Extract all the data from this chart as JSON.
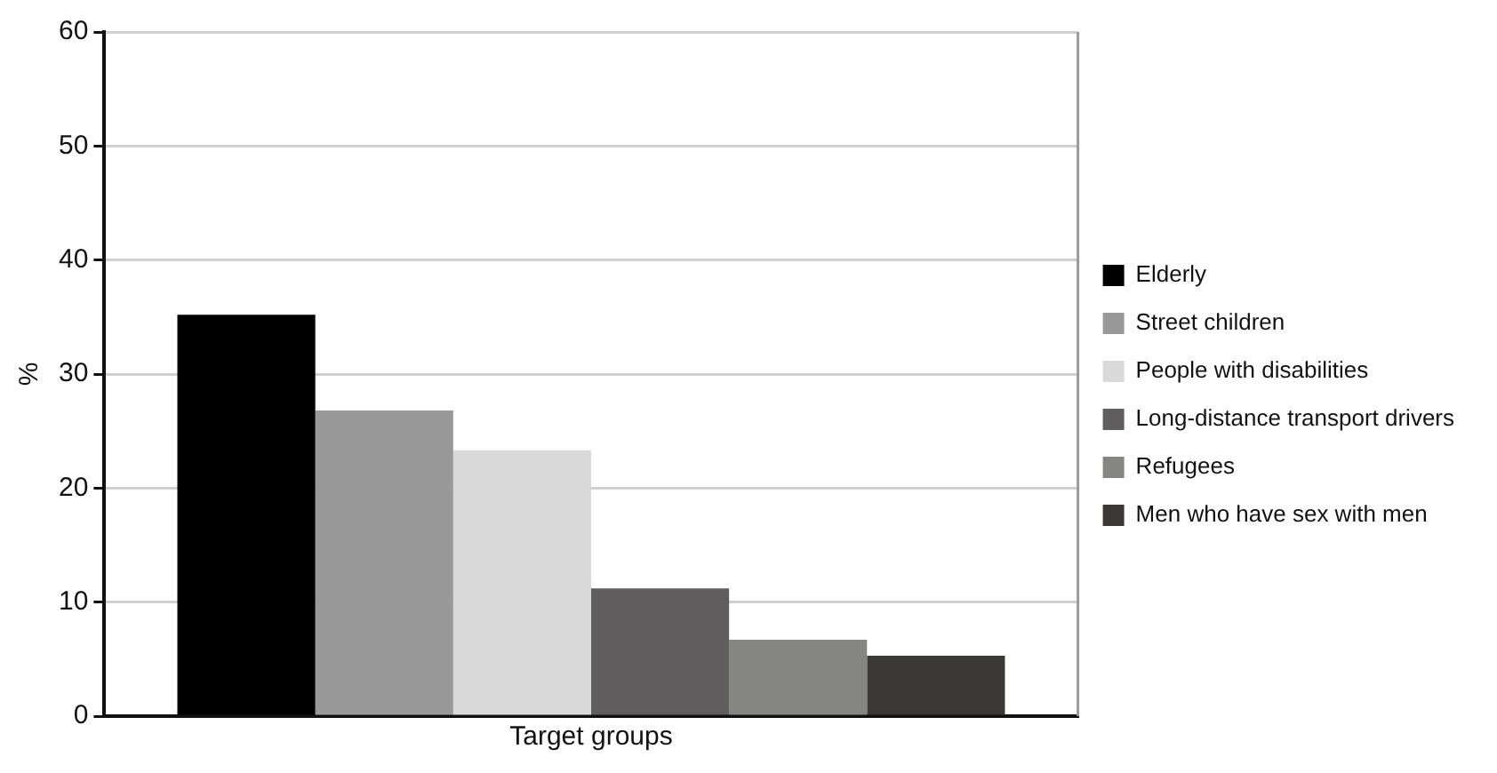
{
  "chart_data": {
    "type": "bar",
    "ylabel": "%",
    "categories": [
      "Target groups"
    ],
    "series": [
      {
        "name": "Elderly",
        "color": "#000000",
        "values": [
          35.2
        ]
      },
      {
        "name": "Street children",
        "color": "#999999",
        "values": [
          26.8
        ]
      },
      {
        "name": "People with disabilities",
        "color": "#d9d9d9",
        "values": [
          23.3
        ]
      },
      {
        "name": "Long-distance transport drivers",
        "color": "#5f5d5e",
        "values": [
          11.2
        ]
      },
      {
        "name": "Refugees",
        "color": "#858684",
        "values": [
          6.7
        ]
      },
      {
        "name": "Men who have sex with men",
        "color": "#3a3836",
        "values": [
          5.3
        ]
      }
    ],
    "ylim": [
      0,
      60
    ],
    "yticks": [
      0,
      10,
      20,
      30,
      40,
      50,
      60
    ],
    "grid": "y",
    "legend": "right"
  }
}
